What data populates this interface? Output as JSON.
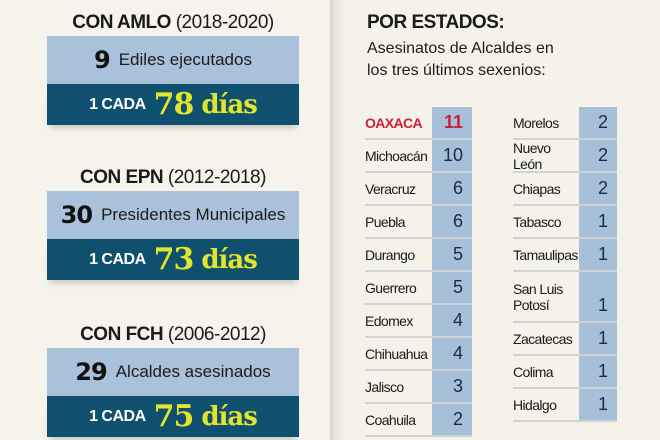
{
  "colors": {
    "background": "#f4f2ea",
    "count_box": "#a9c1da",
    "rate_box": "#10506f",
    "rate_highlight": "#e3e42c",
    "highlight_state": "#cc1e3c"
  },
  "periods": [
    {
      "who": "CON AMLO",
      "years": "(2018-2020)",
      "count": "9",
      "count_label": "Ediles ejecutados",
      "rate_prefix": "1 CADA",
      "rate_value": "78",
      "rate_unit": "días"
    },
    {
      "who": "CON EPN",
      "years": "(2012-2018)",
      "count": "30",
      "count_label": "Presidentes Municipales",
      "rate_prefix": "1 CADA",
      "rate_value": "73",
      "rate_unit": "días"
    },
    {
      "who": "CON FCH",
      "years": "(2006-2012)",
      "count": "29",
      "count_label": "Alcaldes asesinados",
      "rate_prefix": "1 CADA",
      "rate_value": "75",
      "rate_unit": "días"
    }
  ],
  "states_section": {
    "title": "POR ESTADOS:",
    "subtitle_line1": "Asesinatos de Alcaldes en",
    "subtitle_line2": "los tres últimos sexenios:",
    "column1": [
      {
        "name": "OAXACA",
        "value": "11"
      },
      {
        "name": "Michoacán",
        "value": "10"
      },
      {
        "name": "Veracruz",
        "value": "6"
      },
      {
        "name": "Puebla",
        "value": "6"
      },
      {
        "name": "Durango",
        "value": "5"
      },
      {
        "name": "Guerrero",
        "value": "5"
      },
      {
        "name": "Edomex",
        "value": "4"
      },
      {
        "name": "Chihuahua",
        "value": "4"
      },
      {
        "name": "Jalisco",
        "value": "3"
      },
      {
        "name": "Coahuila",
        "value": "2"
      }
    ],
    "column2": [
      {
        "name": "Morelos",
        "value": "2"
      },
      {
        "name": "Nuevo León",
        "value": "2"
      },
      {
        "name": "Chiapas",
        "value": "2"
      },
      {
        "name": "Tabasco",
        "value": "1"
      },
      {
        "name": "Tamaulipas",
        "value": "1"
      },
      {
        "name": "San Luis Potosí",
        "value": "1"
      },
      {
        "name": "Zacatecas",
        "value": "1"
      },
      {
        "name": "Colima",
        "value": "1"
      },
      {
        "name": "Hidalgo",
        "value": "1"
      }
    ]
  }
}
